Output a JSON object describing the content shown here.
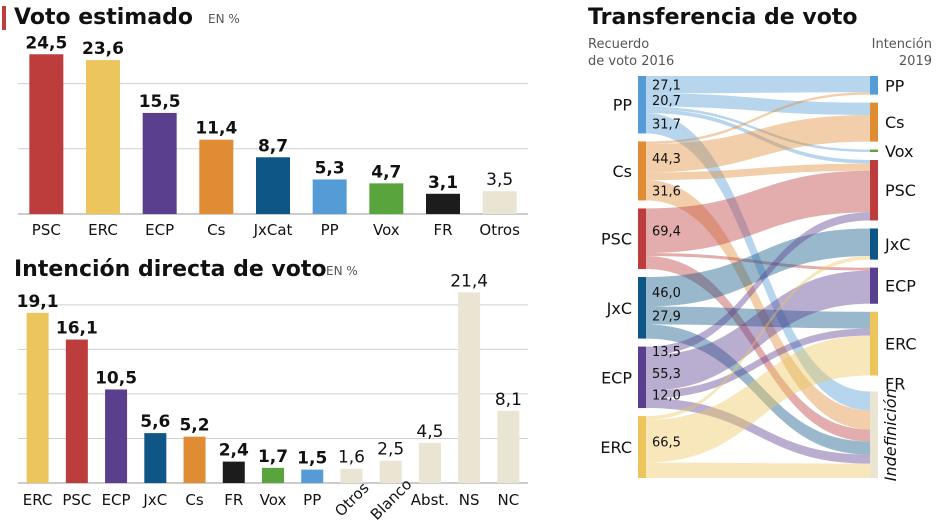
{
  "chart_data": [
    {
      "type": "bar",
      "title": "Voto estimado",
      "unit": "EN %",
      "categories": [
        "PSC",
        "ERC",
        "ECP",
        "Cs",
        "JxCat",
        "PP",
        "Vox",
        "FR",
        "Otros"
      ],
      "values": [
        24.5,
        23.6,
        15.5,
        11.4,
        8.7,
        5.3,
        4.7,
        3.1,
        3.5
      ],
      "value_labels": [
        "24,5",
        "23,6",
        "15,5",
        "11,4",
        "8,7",
        "5,3",
        "4,7",
        "3,1",
        "3,5"
      ],
      "colors": [
        "#bd3c3c",
        "#ecc65c",
        "#5a3f8e",
        "#df8c35",
        "#0e5685",
        "#559bd6",
        "#5aa43d",
        "#1c1c1c",
        "#e9e5d2"
      ],
      "ylim": [
        0,
        25
      ]
    },
    {
      "type": "bar",
      "title": "Intención directa de voto",
      "unit": "EN %",
      "categories": [
        "ERC",
        "PSC",
        "ECP",
        "JxC",
        "Cs",
        "FR",
        "Vox",
        "PP",
        "Otros",
        "Blanco",
        "Abst.",
        "NS",
        "NC"
      ],
      "values": [
        19.1,
        16.1,
        10.5,
        5.6,
        5.2,
        2.4,
        1.7,
        1.5,
        1.6,
        2.5,
        4.5,
        21.4,
        8.1
      ],
      "value_labels": [
        "19,1",
        "16,1",
        "10,5",
        "5,6",
        "5,2",
        "2,4",
        "1,7",
        "1,5",
        "1,6",
        "2,5",
        "4,5",
        "21,4",
        "8,1"
      ],
      "colors": [
        "#ecc65c",
        "#bd3c3c",
        "#5a3f8e",
        "#0e5685",
        "#df8c35",
        "#1c1c1c",
        "#5aa43d",
        "#559bd6",
        "#e9e5d2",
        "#e9e5d2",
        "#e9e5d2",
        "#e9e5d2",
        "#e9e5d2"
      ],
      "ylim": [
        0,
        22
      ]
    },
    {
      "type": "sankey",
      "title": "Transferencia de voto",
      "left_header": [
        "Recuerdo",
        "de voto 2016"
      ],
      "right_header": [
        "Intención",
        "2019"
      ],
      "sources": [
        {
          "name": "PP",
          "color": "#559bd6"
        },
        {
          "name": "Cs",
          "color": "#df8c35"
        },
        {
          "name": "PSC",
          "color": "#bd3c3c"
        },
        {
          "name": "JxC",
          "color": "#0e5685"
        },
        {
          "name": "ECP",
          "color": "#5a3f8e"
        },
        {
          "name": "ERC",
          "color": "#ecc65c"
        }
      ],
      "targets": [
        {
          "name": "PP",
          "color": "#559bd6"
        },
        {
          "name": "Cs",
          "color": "#df8c35"
        },
        {
          "name": "Vox",
          "color": "#5aa43d"
        },
        {
          "name": "PSC",
          "color": "#bd3c3c"
        },
        {
          "name": "JxC",
          "color": "#0e5685"
        },
        {
          "name": "ECP",
          "color": "#5a3f8e"
        },
        {
          "name": "ERC",
          "color": "#ecc65c"
        },
        {
          "name": "FR",
          "color": "#1c1c1c"
        },
        {
          "name": "Indefinición",
          "color": "#e9e5d2"
        }
      ],
      "flows": [
        {
          "source": "PP",
          "target": "PP",
          "value": 27.1,
          "label": "27,1"
        },
        {
          "source": "PP",
          "target": "Cs",
          "value": 20.7,
          "label": "20,7"
        },
        {
          "source": "PP",
          "target": "Vox",
          "value": 4
        },
        {
          "source": "PP",
          "target": "PSC",
          "value": 6
        },
        {
          "source": "PP",
          "target": "Indefinición",
          "value": 31.7,
          "label": "31,7"
        },
        {
          "source": "Cs",
          "target": "PP",
          "value": 4
        },
        {
          "source": "Cs",
          "target": "Cs",
          "value": 44.3,
          "label": "44,3"
        },
        {
          "source": "Cs",
          "target": "PSC",
          "value": 12
        },
        {
          "source": "Cs",
          "target": "Indefinición",
          "value": 31.6,
          "label": "31,6"
        },
        {
          "source": "PSC",
          "target": "PSC",
          "value": 69.4,
          "label": "69,4"
        },
        {
          "source": "PSC",
          "target": "ECP",
          "value": 5
        },
        {
          "source": "PSC",
          "target": "Indefinición",
          "value": 20
        },
        {
          "source": "JxC",
          "target": "JxC",
          "value": 46.0,
          "label": "46,0"
        },
        {
          "source": "JxC",
          "target": "ERC",
          "value": 27.9,
          "label": "27,9"
        },
        {
          "source": "JxC",
          "target": "Indefinición",
          "value": 22
        },
        {
          "source": "ECP",
          "target": "PSC",
          "value": 13.5,
          "label": "13,5"
        },
        {
          "source": "ECP",
          "target": "ECP",
          "value": 55.3,
          "label": "55,3"
        },
        {
          "source": "ECP",
          "target": "ERC",
          "value": 12.0,
          "label": "12,0"
        },
        {
          "source": "ECP",
          "target": "Indefinición",
          "value": 15
        },
        {
          "source": "ERC",
          "target": "ERC",
          "value": 66.5,
          "label": "66,5"
        },
        {
          "source": "ERC",
          "target": "JxC",
          "value": 6
        },
        {
          "source": "ERC",
          "target": "Indefinición",
          "value": 24
        }
      ]
    }
  ]
}
